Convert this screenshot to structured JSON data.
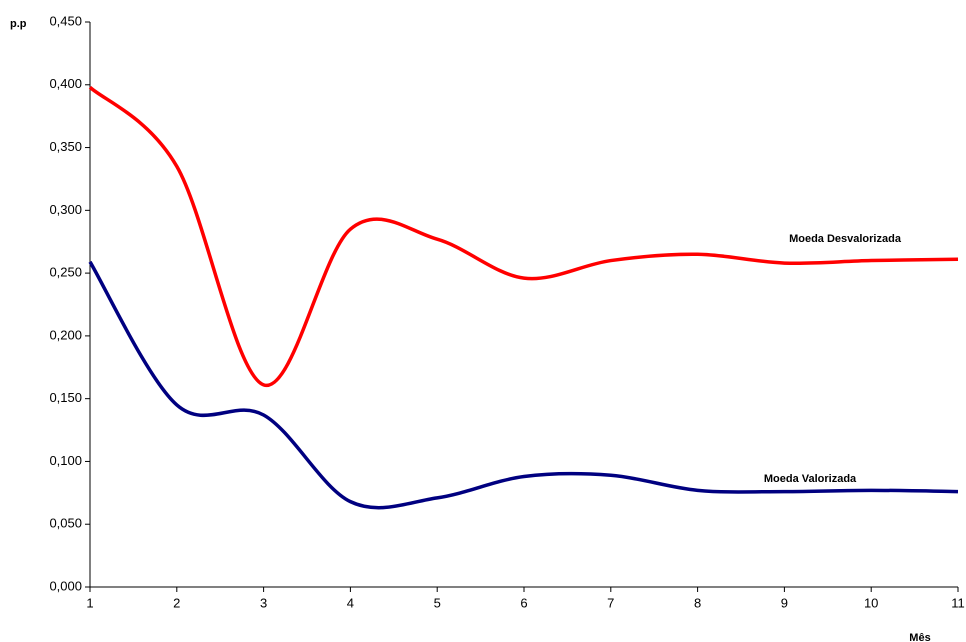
{
  "chart_data": {
    "type": "line",
    "y_label": "p.p",
    "x_label": "Mês",
    "x": [
      1,
      2,
      3,
      4,
      5,
      6,
      7,
      8,
      9,
      10,
      11
    ],
    "series": [
      {
        "name": "Moeda Desvalorizada",
        "color": "#ff0000",
        "values": [
          0.398,
          0.335,
          0.161,
          0.285,
          0.277,
          0.246,
          0.26,
          0.265,
          0.258,
          0.26,
          0.261
        ]
      },
      {
        "name": "Moeda Valorizada",
        "color": "#000080",
        "values": [
          0.259,
          0.145,
          0.137,
          0.068,
          0.071,
          0.088,
          0.089,
          0.077,
          0.076,
          0.077,
          0.076
        ]
      }
    ],
    "xlim": [
      1,
      11
    ],
    "xticks": [
      1,
      2,
      3,
      4,
      5,
      6,
      7,
      8,
      9,
      10,
      11
    ],
    "ylim": [
      0,
      0.45
    ],
    "yticks": [
      {
        "value": 0,
        "label": "0,000"
      },
      {
        "value": 0.05,
        "label": "0,050"
      },
      {
        "value": 0.1,
        "label": "0,100"
      },
      {
        "value": 0.15,
        "label": "0,150"
      },
      {
        "value": 0.2,
        "label": "0,200"
      },
      {
        "value": 0.25,
        "label": "0,250"
      },
      {
        "value": 0.3,
        "label": "0,300"
      },
      {
        "value": 0.35,
        "label": "0,350"
      },
      {
        "value": 0.4,
        "label": "0,400"
      },
      {
        "value": 0.45,
        "label": "0,450"
      }
    ],
    "grid": false
  }
}
